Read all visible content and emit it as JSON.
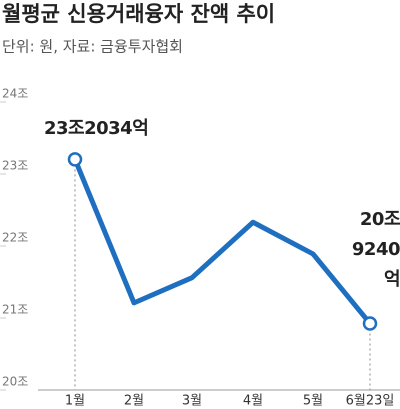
{
  "chart_data": {
    "type": "line",
    "title": "월평균 신용거래융자 잔액 추이",
    "subtitle": "단위: 원, 자료: 금융투자협회",
    "categories": [
      "1월",
      "2월",
      "3월",
      "4월",
      "5월",
      "6월23일"
    ],
    "values": [
      23.2034,
      21.21,
      21.56,
      22.33,
      21.89,
      20.924
    ],
    "value_labels": [
      "23조2034억",
      null,
      null,
      null,
      null,
      "20조\n9240억"
    ],
    "color": "#1f6fc0",
    "ylim": [
      20,
      24
    ],
    "yticks": [
      {
        "value": 20,
        "label": "20조"
      },
      {
        "value": 21,
        "label": "21조"
      },
      {
        "value": 22,
        "label": "22조"
      },
      {
        "value": 23,
        "label": "23조"
      },
      {
        "value": 24,
        "label": "24조"
      }
    ]
  }
}
